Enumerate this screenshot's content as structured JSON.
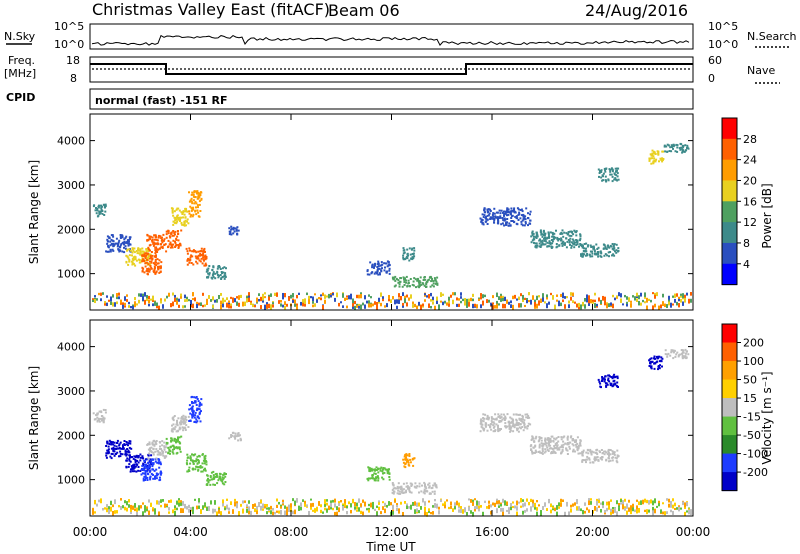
{
  "header": {
    "station": "Christmas Valley East (fitACF)",
    "beam": "Beam 06",
    "date": "24/Aug/2016"
  },
  "noise_panel": {
    "left_label": "N.Sky",
    "left_ticks": [
      "10^5",
      "10^0"
    ],
    "right_label": "N.Search",
    "right_ticks": [
      "10^5",
      "10^0"
    ]
  },
  "freq_panel": {
    "left_label_1": "Freq.",
    "left_label_2": "[MHz]",
    "left_ticks": [
      "18",
      "8"
    ],
    "right_label": "Nave",
    "right_ticks": [
      "60",
      "0"
    ],
    "cpid_label": "CPID",
    "cpid_text": "normal (fast) -151 RF"
  },
  "chart_data": [
    {
      "type": "heatmap",
      "name": "power",
      "ylabel": "Slant Range [km]",
      "xlabel": "",
      "ylim": [
        180,
        4600
      ],
      "yticks": [
        "1000",
        "2000",
        "3000",
        "4000"
      ],
      "xlim_hours": [
        0,
        24
      ],
      "colorbar_label": "Power [dB]",
      "colorbar_ticks": [
        "4",
        "8",
        "12",
        "16",
        "20",
        "24",
        "28"
      ],
      "colorbar_colors": [
        "#0000ff",
        "#2a4fbf",
        "#3d8a8a",
        "#4fa060",
        "#e8d020",
        "#ff9c00",
        "#ff6000",
        "#ff0000"
      ]
    },
    {
      "type": "heatmap",
      "name": "velocity",
      "ylabel": "Slant Range [km]",
      "xlabel": "Time UT",
      "ylim": [
        180,
        4600
      ],
      "yticks": [
        "1000",
        "2000",
        "3000",
        "4000"
      ],
      "xticks": [
        "00:00",
        "04:00",
        "08:00",
        "12:00",
        "16:00",
        "20:00",
        "00:00"
      ],
      "xlim_hours": [
        0,
        24
      ],
      "colorbar_label": "Velocity [m s⁻¹]",
      "colorbar_ticks": [
        "200",
        "100",
        "50",
        "15",
        "-15",
        "-50",
        "-100",
        "-200"
      ],
      "colorbar_colors": [
        "#0000c8",
        "#1e3cff",
        "#2a8a2a",
        "#60c040",
        "#bebebe",
        "#ffd000",
        "#ffa000",
        "#ff6000",
        "#ff0000"
      ]
    }
  ],
  "ionospheric_patches": [
    {
      "t0": 0.1,
      "t1": 0.6,
      "r0": 2300,
      "r1": 2600,
      "p": "#3d8a8a",
      "v": "#bebebe"
    },
    {
      "t0": 0.6,
      "t1": 1.6,
      "r0": 1500,
      "r1": 1900,
      "p": "#2a4fbf",
      "v": "#0000c8"
    },
    {
      "t0": 1.4,
      "t1": 2.4,
      "r0": 1200,
      "r1": 1600,
      "p": "#e8d020",
      "v": "#0000c8"
    },
    {
      "t0": 2.0,
      "t1": 2.8,
      "r0": 1000,
      "r1": 1500,
      "p": "#ff6000",
      "v": "#1e3cff"
    },
    {
      "t0": 2.2,
      "t1": 3.0,
      "r0": 1500,
      "r1": 1900,
      "p": "#ff6000",
      "v": "#bebebe"
    },
    {
      "t0": 3.0,
      "t1": 3.6,
      "r0": 1600,
      "r1": 2000,
      "p": "#ff6000",
      "v": "#60c040"
    },
    {
      "t0": 3.2,
      "t1": 3.9,
      "r0": 2100,
      "r1": 2500,
      "p": "#e8d020",
      "v": "#bebebe"
    },
    {
      "t0": 3.9,
      "t1": 4.4,
      "r0": 2300,
      "r1": 2900,
      "p": "#ff9c00",
      "v": "#1e3cff"
    },
    {
      "t0": 3.8,
      "t1": 4.6,
      "r0": 1200,
      "r1": 1600,
      "p": "#ff6000",
      "v": "#60c040"
    },
    {
      "t0": 4.6,
      "t1": 5.4,
      "r0": 900,
      "r1": 1200,
      "p": "#3d8a8a",
      "v": "#60c040"
    },
    {
      "t0": 5.5,
      "t1": 6.0,
      "r0": 1900,
      "r1": 2100,
      "p": "#2a4fbf",
      "v": "#bebebe"
    },
    {
      "t0": 11.0,
      "t1": 11.9,
      "r0": 1000,
      "r1": 1300,
      "p": "#2a4fbf",
      "v": "#60c040"
    },
    {
      "t0": 12.0,
      "t1": 13.8,
      "r0": 700,
      "r1": 950,
      "p": "#4fa060",
      "v": "#bebebe"
    },
    {
      "t0": 12.4,
      "t1": 12.9,
      "r0": 1300,
      "r1": 1600,
      "p": "#3d8a8a",
      "v": "#ff9c00"
    },
    {
      "t0": 15.5,
      "t1": 17.5,
      "r0": 2100,
      "r1": 2500,
      "p": "#2a4fbf",
      "v": "#bebebe"
    },
    {
      "t0": 17.5,
      "t1": 19.5,
      "r0": 1600,
      "r1": 2000,
      "p": "#3d8a8a",
      "v": "#bebebe"
    },
    {
      "t0": 19.5,
      "t1": 21.0,
      "r0": 1400,
      "r1": 1700,
      "p": "#3d8a8a",
      "v": "#bebebe"
    },
    {
      "t0": 20.2,
      "t1": 21.0,
      "r0": 3100,
      "r1": 3400,
      "p": "#3d8a8a",
      "v": "#0000c8"
    },
    {
      "t0": 22.2,
      "t1": 22.8,
      "r0": 3500,
      "r1": 3800,
      "p": "#e8d020",
      "v": "#0000c8"
    },
    {
      "t0": 22.8,
      "t1": 23.8,
      "r0": 3750,
      "r1": 3950,
      "p": "#3d8a8a",
      "v": "#bebebe"
    }
  ]
}
